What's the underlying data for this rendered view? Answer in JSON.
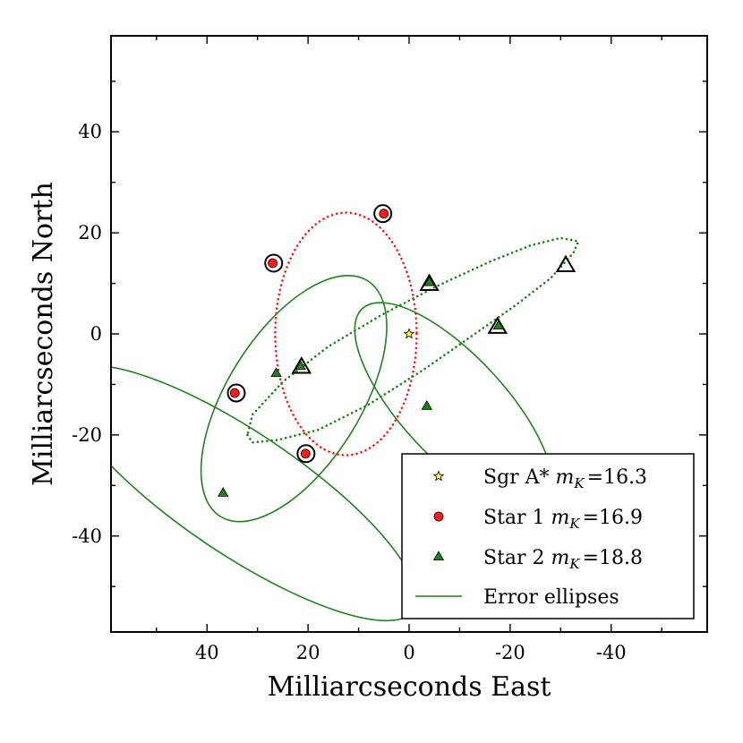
{
  "chart_data": {
    "type": "scatter",
    "title": "",
    "xlabel": "Milliarcseconds East",
    "ylabel": "Milliarcseconds North",
    "xlim": [
      59,
      -59
    ],
    "ylim": [
      -59,
      59
    ],
    "x_inverted": true,
    "xticks": [
      40,
      20,
      0,
      -20,
      -40
    ],
    "xtick_labels": [
      "40",
      "20",
      "0",
      "-20",
      "-40"
    ],
    "yticks": [
      40,
      20,
      0,
      -20,
      -40
    ],
    "ytick_labels": [
      "40",
      "20",
      "0",
      "-20",
      "-40"
    ],
    "grid": false,
    "legend_position": "bottom-right",
    "series": [
      {
        "name": "Sgr A*",
        "label_prefix": "Sgr A* ",
        "magnitude_symbol": "m",
        "magnitude_subscript": "K",
        "magnitude_value": "=16.3",
        "marker": "star",
        "color": "#ffff44",
        "points": [
          [
            0,
            0
          ]
        ]
      },
      {
        "name": "Star 1",
        "label_prefix": "Star 1 ",
        "magnitude_symbol": "m",
        "magnitude_subscript": "K",
        "magnitude_value": "=16.9",
        "marker": "circle",
        "color": "#ff1a1a",
        "points": [
          [
            5,
            23.8
          ],
          [
            27,
            14
          ],
          [
            34.5,
            -11.7
          ],
          [
            20.5,
            -23.7
          ]
        ],
        "highlighted_points": [
          [
            5.2,
            23.8
          ],
          [
            26.8,
            14
          ],
          [
            34.2,
            -11.7
          ],
          [
            20.4,
            -23.7
          ]
        ]
      },
      {
        "name": "Star 2",
        "label_prefix": "Star 2 ",
        "magnitude_symbol": "m",
        "magnitude_subscript": "K",
        "magnitude_value": "=18.8",
        "marker": "triangle",
        "color": "#208020",
        "points": [
          [
            -4,
            10.2
          ],
          [
            -17.7,
            1.6
          ],
          [
            21.5,
            -6.4
          ],
          [
            26.3,
            -7.8
          ],
          [
            -3.5,
            -14.3
          ],
          [
            36.8,
            -31.5
          ]
        ],
        "highlighted_points": [
          [
            -4,
            9.8
          ],
          [
            -17.5,
            1.3
          ],
          [
            21.3,
            -6.6
          ],
          [
            -31,
            13.5
          ]
        ]
      }
    ],
    "orbits": [
      {
        "name": "Star 1 orbit",
        "color": "#ff1a1a",
        "style": "dotted",
        "center": [
          12.5,
          0
        ],
        "semi_axes": [
          14.0,
          24.0
        ],
        "rotation_deg": 0
      },
      {
        "name": "Star 2 orbit",
        "color": "#208020",
        "style": "dotted",
        "polyline": [
          [
            32,
            -20
          ],
          [
            31,
            -21.5
          ],
          [
            26,
            -21
          ],
          [
            18,
            -19
          ],
          [
            8,
            -14
          ],
          [
            -3,
            -7
          ],
          [
            -13,
            0
          ],
          [
            -21,
            5.6
          ],
          [
            -28,
            11
          ],
          [
            -32.5,
            16
          ],
          [
            -33.5,
            18.3
          ],
          [
            -30,
            19
          ],
          [
            -24,
            17.5
          ],
          [
            -16,
            14.3
          ],
          [
            -6,
            9.7
          ],
          [
            5,
            4
          ],
          [
            16,
            -2.5
          ],
          [
            25,
            -9.5
          ],
          [
            31,
            -16
          ],
          [
            32,
            -20
          ]
        ]
      }
    ],
    "error_ellipses": [
      {
        "name": "error-ellipse-1",
        "center": [
          22.8,
          -12.8
        ],
        "semi_axes": [
          27.5,
          13.2
        ],
        "rotation_deg": -58,
        "color": "#208020"
      },
      {
        "name": "error-ellipse-2",
        "center": [
          -8.8,
          -14.4
        ],
        "semi_axes": [
          26.5,
          10.2
        ],
        "rotation_deg": 47,
        "color": "#208020"
      },
      {
        "name": "error-ellipse-3",
        "center": [
          33.5,
          -31.5
        ],
        "semi_axes": [
          41.5,
          12.0
        ],
        "rotation_deg": 34,
        "color": "#208020"
      }
    ],
    "legend_entries": [
      {
        "series": "Sgr A*"
      },
      {
        "series": "Star 1"
      },
      {
        "series": "Star 2"
      },
      {
        "label": "Error ellipses",
        "line_color": "#208020"
      }
    ]
  }
}
